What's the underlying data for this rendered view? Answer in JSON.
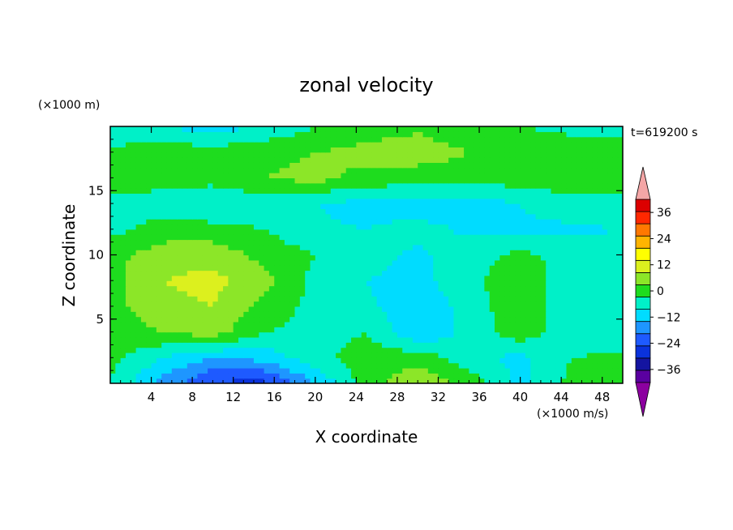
{
  "chart_data": {
    "type": "heatmap",
    "title": "zonal velocity",
    "xlabel": "X coordinate",
    "ylabel": "Z coordinate",
    "x_units": "(×1000 m/s)",
    "y_units": "(×1000 m)",
    "time_label": "t=619200 s",
    "xlim": [
      0,
      50
    ],
    "ylim": [
      0,
      20
    ],
    "x_ticks": [
      4,
      8,
      12,
      16,
      20,
      24,
      28,
      32,
      36,
      40,
      44,
      48
    ],
    "y_ticks": [
      5,
      10,
      15
    ],
    "colorbar": {
      "ticks": [
        36,
        24,
        12,
        0,
        -12,
        -24,
        -36
      ],
      "levels": [
        -42,
        -36,
        -30,
        -24,
        -18,
        -12,
        -6,
        0,
        6,
        12,
        18,
        24,
        30,
        36,
        42
      ],
      "colors": [
        "#5a00a0",
        "#1414a0",
        "#0a32dc",
        "#1e5aff",
        "#1e96ff",
        "#00dcff",
        "#00f0c8",
        "#1edc1e",
        "#8ce628",
        "#dcf01e",
        "#ffff00",
        "#ffb400",
        "#ff7800",
        "#ff2800",
        "#dc0000"
      ],
      "over_color": "#f4a6a6",
      "under_color": "#8c00a0"
    },
    "z_grid": {
      "x": [
        0,
        5,
        10,
        15,
        20,
        25,
        30,
        35,
        40,
        45,
        50
      ],
      "z": [
        0,
        2,
        4,
        6,
        8,
        10,
        12,
        14,
        16,
        18,
        20
      ],
      "values": [
        [
          0,
          -14,
          -25,
          -26,
          -12,
          3,
          11,
          4,
          -8,
          2,
          5
        ],
        [
          2,
          -6,
          -12,
          -10,
          -2,
          3,
          4,
          -4,
          -8,
          0,
          2
        ],
        [
          3,
          6,
          9,
          0,
          -2,
          0,
          -12,
          -4,
          4,
          -4,
          -6
        ],
        [
          4,
          10,
          12,
          4,
          -2,
          -5,
          -10,
          -4,
          5,
          -5,
          -6
        ],
        [
          4,
          12,
          14,
          8,
          -2,
          -6,
          -8,
          -2,
          5,
          -4,
          -6
        ],
        [
          4,
          9,
          10,
          4,
          0,
          -4,
          -7,
          -3,
          2,
          -3,
          -4
        ],
        [
          -2,
          3,
          2,
          0,
          -5,
          -6,
          -4,
          -7,
          -7,
          -7,
          -6
        ],
        [
          -3,
          -4,
          -5,
          -4,
          -6,
          -8,
          -9,
          -9,
          -6,
          -3,
          -2
        ],
        [
          6,
          3,
          2,
          6,
          8,
          4,
          3,
          3,
          3,
          5,
          3
        ],
        [
          1,
          4,
          3,
          4,
          6,
          8,
          9,
          6,
          5,
          4,
          5
        ],
        [
          -4,
          -6,
          -9,
          -5,
          0,
          3,
          5,
          2,
          0,
          -2,
          -4
        ]
      ]
    }
  }
}
